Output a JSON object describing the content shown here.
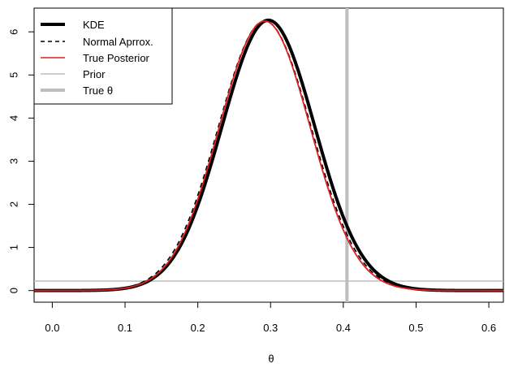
{
  "chart_data": {
    "type": "line",
    "xlabel": "θ",
    "ylabel": "",
    "xlim": [
      -0.025,
      0.62
    ],
    "ylim": [
      -0.27,
      6.55
    ],
    "x_ticks": [
      "0.0",
      "0.1",
      "0.2",
      "0.3",
      "0.4",
      "0.5",
      "0.6"
    ],
    "x_tick_values": [
      0.0,
      0.1,
      0.2,
      0.3,
      0.4,
      0.5,
      0.6
    ],
    "y_ticks": [
      "0",
      "1",
      "2",
      "3",
      "4",
      "5",
      "6"
    ],
    "y_tick_values": [
      0,
      1,
      2,
      3,
      4,
      5,
      6
    ],
    "grid": false,
    "legend_position": "top-left",
    "legend": [
      {
        "label": "KDE",
        "color": "#000000",
        "style": "thick-solid"
      },
      {
        "label": "Normal Aprrox.",
        "color": "#000000",
        "style": "dashed"
      },
      {
        "label": "True Posterior",
        "color": "#DF1F1F",
        "style": "solid"
      },
      {
        "label": "Prior",
        "color": "#BEBEBE",
        "style": "solid"
      },
      {
        "label": "True θ",
        "color": "#BEBEBE",
        "style": "thick-solid"
      }
    ],
    "series": [
      {
        "name": "KDE",
        "color": "#000000",
        "kind": "normal-curve",
        "mean": 0.297,
        "sd": 0.0638,
        "peak": 6.27
      },
      {
        "name": "Normal Aprrox.",
        "color": "#000000",
        "kind": "normal-curve",
        "mean": 0.292,
        "sd": 0.0638,
        "peak": 6.25
      },
      {
        "name": "True Posterior",
        "color": "#DF1F1F",
        "kind": "normal-curve",
        "mean": 0.292,
        "sd": 0.0625,
        "peak": 6.25
      },
      {
        "name": "Prior",
        "color": "#BEBEBE",
        "kind": "constant",
        "value": 0.22
      },
      {
        "name": "True θ",
        "color": "#BEBEBE",
        "kind": "vertical",
        "value": 0.405
      }
    ]
  }
}
